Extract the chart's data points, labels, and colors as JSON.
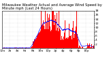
{
  "title": "Milwaukee Weather Actual and Average Wind Speed by Minute mph (Last 24 Hours)",
  "n_points": 1440,
  "bar_color": "#ff0000",
  "line_color": "#0000ff",
  "background_color": "#ffffff",
  "plot_bg_color": "#ffffff",
  "ylim": [
    0,
    18
  ],
  "yticks": [
    2,
    4,
    6,
    8,
    10,
    12,
    14,
    16,
    18
  ],
  "grid_color": "#aaaaaa",
  "title_fontsize": 3.8,
  "tick_fontsize": 3.2,
  "seed": 42
}
